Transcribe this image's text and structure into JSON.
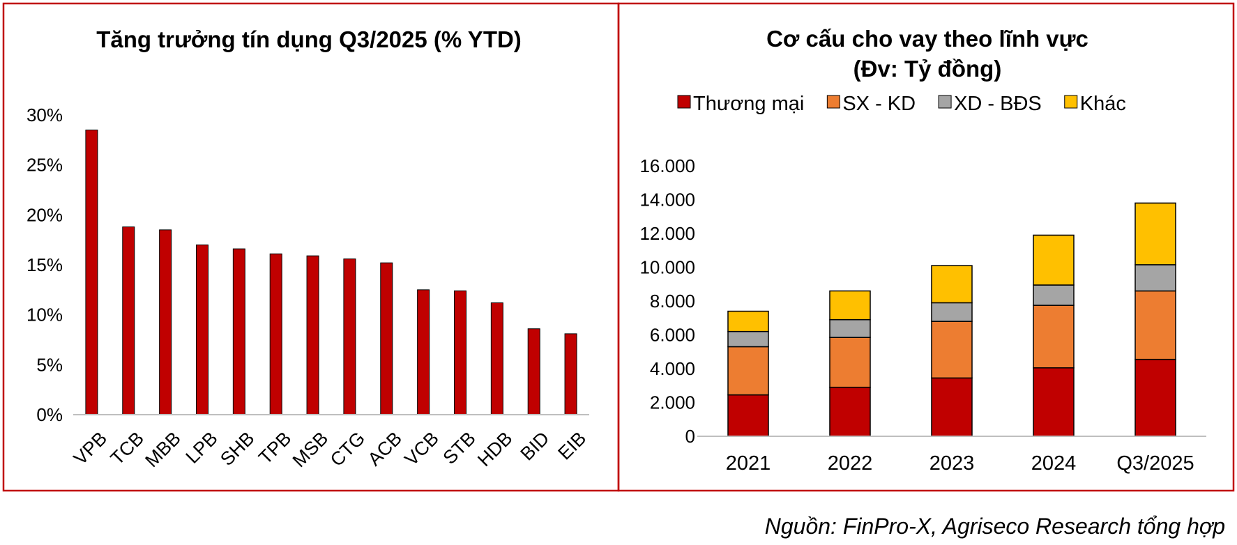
{
  "colors": {
    "frame": "#c00000",
    "bar": "#c00000",
    "bar_edge": "#000000",
    "axis": "#bfbfbf",
    "gridline": "#d9d9d9"
  },
  "chart_data": [
    {
      "type": "bar",
      "title": "Tăng trưởng tín dụng Q3/2025 (% YTD)",
      "xlabel": "",
      "ylabel": "",
      "categories": [
        "VPB",
        "TCB",
        "MBB",
        "LPB",
        "SHB",
        "TPB",
        "MSB",
        "CTG",
        "ACB",
        "VCB",
        "STB",
        "HDB",
        "BID",
        "EIB"
      ],
      "values": [
        28.5,
        18.8,
        18.5,
        17.0,
        16.6,
        16.1,
        15.9,
        15.6,
        15.2,
        12.5,
        12.4,
        11.2,
        8.6,
        8.1
      ],
      "ylim": [
        0,
        30
      ],
      "yticks": [
        0,
        5,
        10,
        15,
        20,
        25,
        30
      ],
      "ytick_labels": [
        "0%",
        "5%",
        "10%",
        "15%",
        "20%",
        "25%",
        "30%"
      ],
      "grid": false,
      "legend": "none"
    },
    {
      "type": "bar",
      "stacked": true,
      "title": "Cơ cấu cho vay theo lĩnh vực",
      "subtitle": "(Đv: Tỷ đồng)",
      "xlabel": "",
      "ylabel": "",
      "categories": [
        "2021",
        "2022",
        "2023",
        "2024",
        "Q3/2025"
      ],
      "series": [
        {
          "name": "Thương mại",
          "color": "#c00000",
          "values": [
            2450,
            2900,
            3450,
            4050,
            4550
          ]
        },
        {
          "name": "SX - KD",
          "color": "#ed7d31",
          "values": [
            2850,
            2950,
            3350,
            3700,
            4050
          ]
        },
        {
          "name": "XD - BĐS",
          "color": "#a5a5a5",
          "values": [
            900,
            1050,
            1100,
            1200,
            1550
          ]
        },
        {
          "name": "Khác",
          "color": "#ffc000",
          "values": [
            1200,
            1700,
            2200,
            2950,
            3650
          ]
        }
      ],
      "ylim": [
        0,
        16000
      ],
      "yticks": [
        0,
        2000,
        4000,
        6000,
        8000,
        10000,
        12000,
        14000,
        16000
      ],
      "ytick_labels": [
        "0",
        "2.000",
        "4.000",
        "6.000",
        "8.000",
        "10.000",
        "12.000",
        "14.000",
        "16.000"
      ],
      "grid": false,
      "legend": "top"
    }
  ],
  "footer": {
    "source": "Nguồn: FinPro-X, Agriseco Research tổng hợp"
  }
}
